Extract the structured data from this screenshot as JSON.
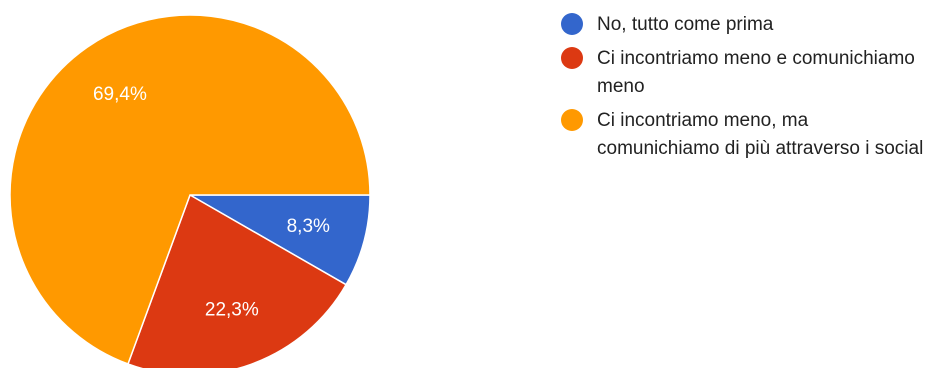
{
  "chart_data": {
    "type": "pie",
    "slices": [
      {
        "label": "No, tutto come prima",
        "value": 8.3,
        "display": "8,3%",
        "color": "#3366cc"
      },
      {
        "label": "Ci incontriamo meno e comunichiamo meno",
        "value": 22.3,
        "display": "22,3%",
        "color": "#dc3912"
      },
      {
        "label": "Ci incontriamo meno, ma comunichiamo di più attraverso i social",
        "value": 69.4,
        "display": "69,4%",
        "color": "#ff9900"
      }
    ],
    "legend_position": "right",
    "start": "3 o'clock, clockwise"
  }
}
